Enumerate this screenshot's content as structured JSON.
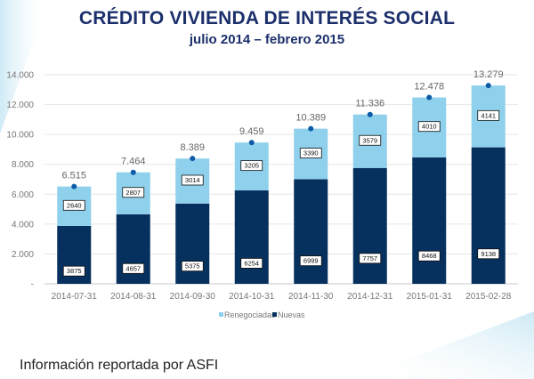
{
  "header": {
    "title": "CRÉDITO VIVIENDA DE INTERÉS SOCIAL",
    "subtitle": "julio 2014 – febrero 2015"
  },
  "footer": {
    "text": "Información reportada por ASFI"
  },
  "colors": {
    "renegociadas": "#8fd0ec",
    "nuevas": "#06305e",
    "marker": "#0d5aa7",
    "title": "#1b2f6b"
  },
  "chart_data": {
    "type": "bar",
    "stacked": true,
    "title": "CRÉDITO VIVIENDA DE INTERÉS SOCIAL",
    "subtitle": "julio 2014 – febrero 2015",
    "xlabel": "",
    "ylabel": "",
    "ylim": [
      0,
      14000
    ],
    "yticks": [
      0,
      2000,
      4000,
      6000,
      8000,
      10000,
      12000,
      14000
    ],
    "ytick_labels": [
      "-",
      "2.000",
      "4.000",
      "6.000",
      "8.000",
      "10.000",
      "12.000",
      "14.000"
    ],
    "grid": true,
    "legend_position": "bottom",
    "categories": [
      "2014-07-31",
      "2014-08-31",
      "2014-09-30",
      "2014-10-31",
      "2014-11-30",
      "2014-12-31",
      "2015-01-31",
      "2015-02-28"
    ],
    "series": [
      {
        "name": "Nuevas",
        "color": "#06305e",
        "values": [
          3875,
          4657,
          5375,
          6254,
          6999,
          7757,
          8468,
          9138
        ]
      },
      {
        "name": "Renegociadas",
        "color": "#8fd0ec",
        "values": [
          2640,
          2807,
          3014,
          3205,
          3390,
          3579,
          4010,
          4141
        ]
      }
    ],
    "totals": [
      6515,
      7464,
      8389,
      9459,
      10389,
      11336,
      12478,
      13279
    ],
    "total_labels": [
      "6.515",
      "7.464",
      "8.389",
      "9.459",
      "10.389",
      "11.336",
      "12.478",
      "13.279"
    ],
    "legend": [
      "Renegociadas",
      "Nuevas"
    ]
  }
}
